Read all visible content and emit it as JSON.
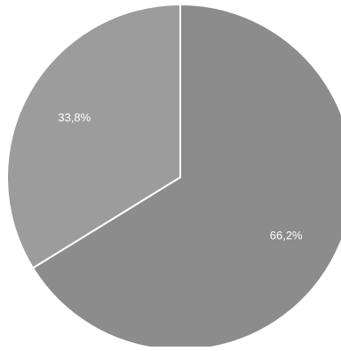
{
  "chart_data": {
    "type": "pie",
    "values": [
      66.2,
      33.8
    ],
    "value_labels": [
      "66,2%",
      "33,8%"
    ],
    "colors": [
      "#8c8c8c",
      "#9c9c9c"
    ]
  }
}
